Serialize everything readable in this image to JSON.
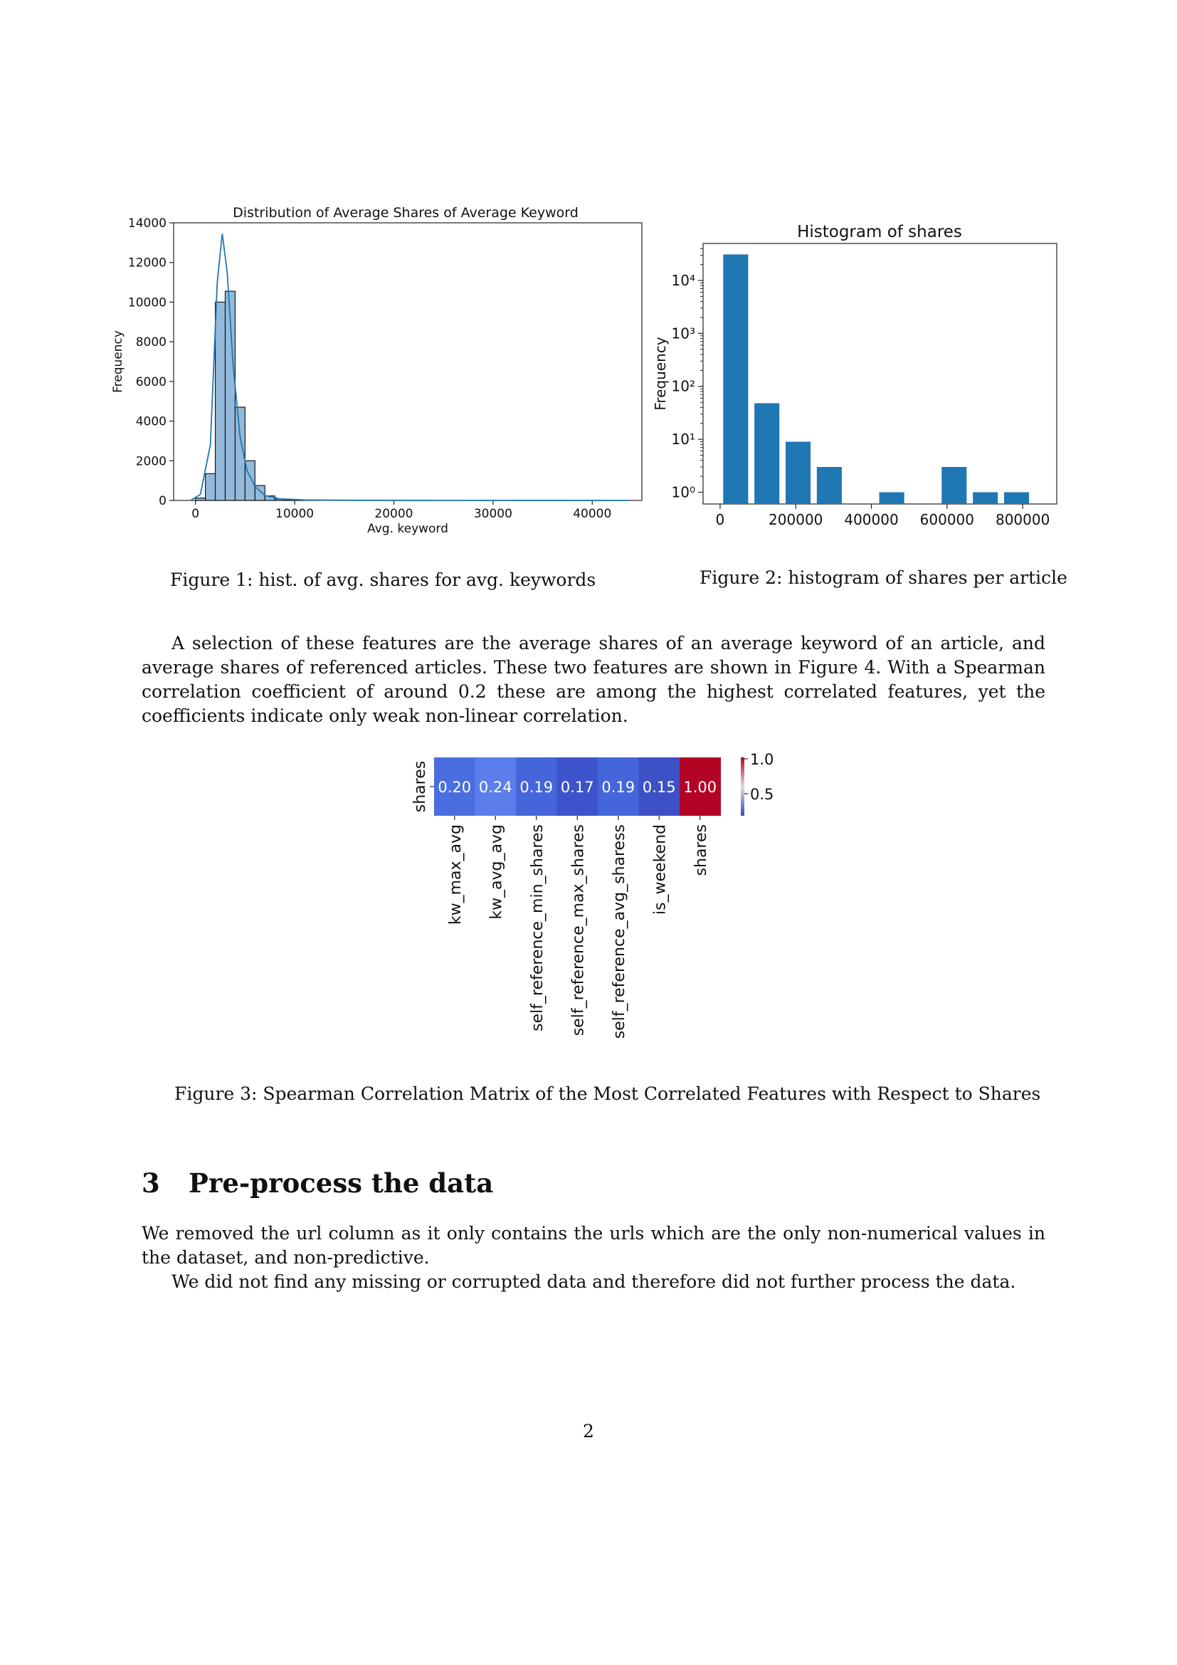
{
  "figures": {
    "fig1": {
      "caption": "Figure 1: hist. of avg. shares for avg. keywords"
    },
    "fig2": {
      "caption": "Figure 2: histogram of shares per article"
    },
    "fig3": {
      "caption": "Figure 3: Spearman Correlation Matrix of the Most Correlated Features with Respect to Shares"
    }
  },
  "paragraphs": {
    "p1": "A selection of these features are the average shares of an average keyword of an article, and average shares of referenced articles. These two features are shown in Figure 4. With a Spearman correlation coefficient of around 0.2 these are among the highest correlated features, yet the coefficients indicate only weak non-linear correlation.",
    "p2": "We removed the url column as it only contains the urls which are the only non-numerical values in the dataset, and non-predictive.",
    "p3": "We did not find any missing or corrupted data and therefore did not further process the data."
  },
  "section": {
    "number": "3",
    "title": "Pre-process the data"
  },
  "page_number": "2",
  "chart_data": [
    {
      "type": "bar",
      "title": "Distribution of Average Shares of Average Keyword",
      "xlabel": "Avg. keyword",
      "ylabel": "Frequency",
      "xlim": [
        -2200,
        45000
      ],
      "ylim": [
        0,
        14000
      ],
      "xticks": [
        0,
        10000,
        20000,
        30000,
        40000
      ],
      "yticks": [
        0,
        2000,
        4000,
        6000,
        8000,
        10000,
        12000,
        14000
      ],
      "bin_width": 1000,
      "bins": [
        {
          "x": 0,
          "value": 120
        },
        {
          "x": 1000,
          "value": 1350
        },
        {
          "x": 2000,
          "value": 10000
        },
        {
          "x": 3000,
          "value": 10550
        },
        {
          "x": 4000,
          "value": 4700
        },
        {
          "x": 5000,
          "value": 2000
        },
        {
          "x": 6000,
          "value": 750
        },
        {
          "x": 7000,
          "value": 230
        },
        {
          "x": 8000,
          "value": 80
        },
        {
          "x": 9000,
          "value": 40
        },
        {
          "x": 10000,
          "value": 20
        }
      ],
      "kde": [
        [
          -500,
          0
        ],
        [
          500,
          300
        ],
        [
          1500,
          2800
        ],
        [
          2200,
          11000
        ],
        [
          2700,
          13450
        ],
        [
          3200,
          11500
        ],
        [
          3800,
          6800
        ],
        [
          4500,
          3200
        ],
        [
          5200,
          1500
        ],
        [
          6000,
          700
        ],
        [
          7000,
          250
        ],
        [
          8500,
          80
        ],
        [
          11000,
          25
        ],
        [
          16000,
          8
        ],
        [
          25000,
          3
        ],
        [
          43500,
          0
        ]
      ],
      "grid": false,
      "color": "#6fa3cf"
    },
    {
      "type": "bar",
      "title": "Histogram of  shares",
      "xlabel": "",
      "ylabel": "Frequency",
      "yscale": "log",
      "xlim": [
        -45000,
        890000
      ],
      "ylim": [
        0.6,
        50000
      ],
      "xticks": [
        0,
        200000,
        400000,
        600000,
        800000
      ],
      "yticks": [
        1,
        10,
        100,
        1000,
        10000
      ],
      "ytick_labels": [
        "10⁰",
        "10¹",
        "10²",
        "10³",
        "10⁴"
      ],
      "bin_width": 82500,
      "bins": [
        {
          "x": 0,
          "value": 31000
        },
        {
          "x": 82500,
          "value": 48
        },
        {
          "x": 165000,
          "value": 9
        },
        {
          "x": 247500,
          "value": 3
        },
        {
          "x": 330000,
          "value": 0
        },
        {
          "x": 412500,
          "value": 1
        },
        {
          "x": 495000,
          "value": 0
        },
        {
          "x": 577500,
          "value": 3
        },
        {
          "x": 660000,
          "value": 1
        },
        {
          "x": 742500,
          "value": 1
        }
      ],
      "grid": false,
      "color": "#1f77b4"
    },
    {
      "type": "heatmap",
      "row_labels": [
        "shares"
      ],
      "col_labels": [
        "kw_max_avg",
        "kw_avg_avg",
        "self_reference_min_shares",
        "self_reference_max_shares",
        "self_reference_avg_sharess",
        "is_weekend",
        "shares"
      ],
      "values": [
        0.2,
        0.24,
        0.19,
        0.17,
        0.19,
        0.15,
        1.0
      ],
      "value_labels": [
        "0.20",
        "0.24",
        "0.19",
        "0.17",
        "0.19",
        "0.15",
        "1.00"
      ],
      "colorbar_ticks": [
        "1.0",
        "0.5"
      ],
      "colormap": "coolwarm",
      "colors": [
        "#4a6ee0",
        "#5b7eec",
        "#4565da",
        "#3c53cb",
        "#4565da",
        "#3d50c6",
        "#b40426"
      ]
    }
  ]
}
